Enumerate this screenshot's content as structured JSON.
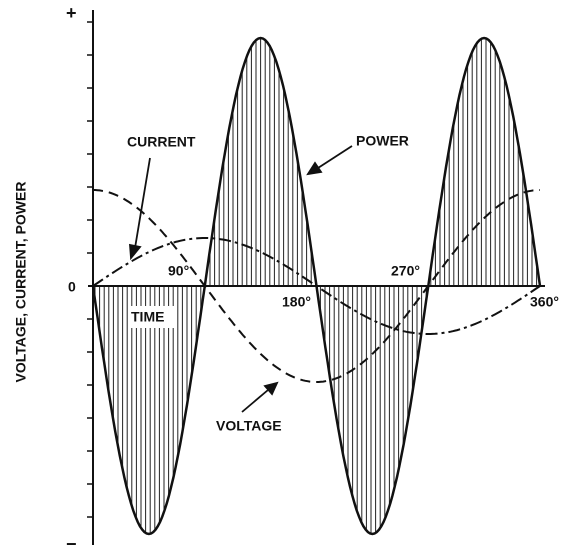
{
  "labels": {
    "plus": "+",
    "minus": "−",
    "zero": "0",
    "deg90": "90°",
    "deg180": "180°",
    "deg270": "270°",
    "deg360": "360°",
    "time": "TIME",
    "current": "CURRENT",
    "power": "POWER",
    "voltage": "VOLTAGE",
    "axis": "VOLTAGE, CURRENT, POWER"
  }
}
